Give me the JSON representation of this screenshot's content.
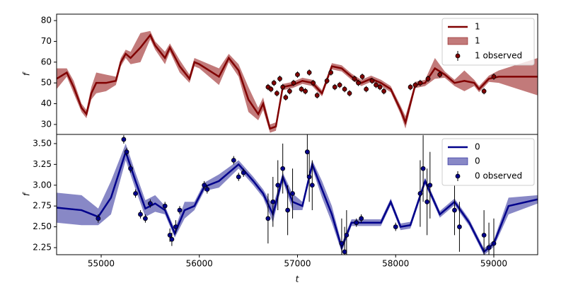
{
  "chart_data": [
    {
      "type": "line",
      "ylabel": "f",
      "legend": "upper right",
      "xlim": [
        54546,
        59447
      ],
      "ylim": [
        25.2,
        83.1
      ],
      "yticks": [
        30,
        40,
        50,
        60,
        70,
        80
      ],
      "line": {
        "name": "1",
        "color": "#800000",
        "x": [
          54546,
          54650,
          54720,
          54800,
          54850,
          54900,
          54950,
          55050,
          55150,
          55200,
          55250,
          55300,
          55400,
          55500,
          55550,
          55650,
          55700,
          55800,
          55900,
          55950,
          56000,
          56100,
          56200,
          56300,
          56400,
          56500,
          56600,
          56650,
          56720,
          56780,
          56850,
          56950,
          57050,
          57150,
          57250,
          57350,
          57450,
          57550,
          57650,
          57750,
          57850,
          57950,
          58050,
          58100,
          58200,
          58300,
          58400,
          58500,
          58600,
          58700,
          58800,
          58850,
          58950,
          59050,
          59447
        ],
        "values": [
          52,
          55,
          48,
          38,
          35,
          45,
          50,
          50,
          51,
          60,
          64,
          62,
          67,
          73,
          68,
          62,
          67,
          58,
          52,
          60,
          59,
          56,
          53,
          62,
          56,
          42,
          35,
          40,
          28,
          29,
          48,
          49,
          51,
          50,
          45,
          58,
          57,
          53,
          50,
          52,
          50,
          47,
          37,
          31,
          49,
          50,
          57,
          54,
          50,
          51,
          50,
          47,
          52,
          53,
          53
        ]
      },
      "band": {
        "name": "1",
        "color": "#b35959",
        "lower": [
          47,
          53,
          45,
          36,
          33,
          42,
          45,
          46,
          49,
          58,
          62,
          59,
          60,
          71,
          66,
          59,
          65,
          55,
          50,
          58,
          57,
          53,
          49,
          60,
          53,
          36,
          32,
          37,
          26,
          27,
          46.5,
          47.5,
          49.5,
          48.5,
          43.5,
          56.5,
          55.5,
          51.5,
          48.5,
          50.5,
          48.5,
          45.5,
          35,
          28,
          47.5,
          48.5,
          52,
          52.5,
          48.5,
          46,
          48.5,
          45.5,
          50.5,
          50,
          44
        ],
        "upper": [
          57,
          57,
          51,
          40,
          37,
          48,
          55,
          54,
          53,
          62,
          66,
          65,
          74,
          75,
          70,
          65,
          69,
          61,
          54,
          62,
          61,
          59,
          57,
          64,
          59,
          48,
          38,
          43,
          30,
          31,
          49.5,
          50.5,
          52.5,
          51.5,
          46.5,
          59.5,
          58.5,
          54.5,
          51.5,
          53.5,
          51.5,
          48.5,
          39,
          34,
          50.5,
          51.5,
          62,
          55.5,
          51.5,
          56,
          51.5,
          48.5,
          53.5,
          56,
          62
        ]
      },
      "observed": {
        "name": "1 observed",
        "color": "#800000",
        "x": [
          56700,
          56730,
          56760,
          56790,
          56820,
          56850,
          56880,
          56920,
          56960,
          57000,
          57040,
          57080,
          57120,
          57160,
          57200,
          57300,
          57340,
          57380,
          57430,
          57480,
          57530,
          57580,
          57620,
          57660,
          57700,
          57760,
          57800,
          57840,
          57880,
          58150,
          58200,
          58250,
          58330,
          58450,
          58900,
          59000
        ],
        "values": [
          48,
          47,
          50,
          45,
          52,
          48,
          43,
          46,
          50,
          54,
          47,
          46,
          55,
          50,
          44,
          51,
          55,
          48,
          49,
          47,
          45,
          52,
          50,
          53,
          47,
          51,
          49,
          48,
          46,
          48,
          49,
          50,
          52,
          54,
          46,
          53
        ],
        "errors": [
          1.5,
          1.5,
          1.5,
          1.5,
          1.5,
          1.5,
          1.5,
          1.5,
          1.5,
          1.5,
          1.5,
          1.5,
          1.5,
          1.5,
          1.5,
          1.5,
          1.5,
          1.5,
          1.5,
          1.5,
          1.5,
          1.5,
          1.5,
          1.5,
          1.5,
          1.5,
          1.5,
          1.5,
          1.5,
          1.5,
          1.5,
          1.5,
          1.5,
          1.5,
          1.5,
          1.5
        ]
      }
    },
    {
      "type": "line",
      "ylabel": "f",
      "xlabel": "t",
      "legend": "upper right",
      "xlim": [
        54546,
        59447
      ],
      "ylim": [
        2.165,
        3.61
      ],
      "xticks": [
        55000,
        56000,
        57000,
        58000,
        59000
      ],
      "yticks": [
        {
          "value": 2.25,
          "label": "2.25"
        },
        {
          "value": 2.5,
          "label": "2.50"
        },
        {
          "value": 2.75,
          "label": "2.75"
        },
        {
          "value": 3.0,
          "label": "3.00"
        },
        {
          "value": 3.25,
          "label": "3.25"
        },
        {
          "value": 3.5,
          "label": "3.50"
        }
      ],
      "line": {
        "name": "0",
        "color": "#00008b",
        "x": [
          54546,
          54800,
          54970,
          55100,
          55250,
          55350,
          55450,
          55550,
          55650,
          55750,
          55850,
          55950,
          56050,
          56200,
          56400,
          56550,
          56650,
          56750,
          56850,
          56950,
          57050,
          57150,
          57250,
          57350,
          57450,
          57550,
          57700,
          57850,
          57950,
          58050,
          58150,
          58300,
          58450,
          58600,
          58750,
          58900,
          59000,
          59150,
          59447
        ],
        "values": [
          2.73,
          2.7,
          2.62,
          2.85,
          3.4,
          3.05,
          2.72,
          2.78,
          2.7,
          2.42,
          2.7,
          2.75,
          2.98,
          3.05,
          3.25,
          3.05,
          2.9,
          2.65,
          3.1,
          2.8,
          2.75,
          3.25,
          2.95,
          2.65,
          2.25,
          2.55,
          2.55,
          2.55,
          2.8,
          2.5,
          2.52,
          3.05,
          2.65,
          2.8,
          2.55,
          2.2,
          2.3,
          2.75,
          2.83
        ]
      },
      "band": {
        "name": "0",
        "color": "#6a6ab8",
        "lower": [
          2.55,
          2.52,
          2.52,
          2.65,
          3.3,
          2.95,
          2.62,
          2.68,
          2.65,
          2.37,
          2.6,
          2.7,
          2.93,
          2.97,
          3.2,
          3.0,
          2.85,
          2.55,
          3.05,
          2.7,
          2.7,
          3.2,
          2.85,
          2.55,
          2.2,
          2.51,
          2.51,
          2.51,
          2.76,
          2.46,
          2.48,
          3.01,
          2.61,
          2.76,
          2.51,
          2.16,
          2.26,
          2.65,
          2.78
        ],
        "upper": [
          2.91,
          2.88,
          2.72,
          3.05,
          3.5,
          3.15,
          2.82,
          2.88,
          2.75,
          2.47,
          2.8,
          2.8,
          3.03,
          3.13,
          3.3,
          3.1,
          2.95,
          2.75,
          3.15,
          2.9,
          2.8,
          3.3,
          3.05,
          2.75,
          2.3,
          2.59,
          2.59,
          2.59,
          2.84,
          2.54,
          2.56,
          3.09,
          2.69,
          2.84,
          2.59,
          2.24,
          2.34,
          2.85,
          2.88
        ]
      },
      "observed": {
        "name": "0 observed",
        "color": "#00008b",
        "x": [
          54970,
          55230,
          55260,
          55300,
          55350,
          55400,
          55450,
          55500,
          55650,
          55700,
          55720,
          55760,
          55800,
          56050,
          56080,
          56350,
          56400,
          56450,
          56700,
          56750,
          56800,
          56850,
          56900,
          56950,
          57100,
          57120,
          57150,
          57450,
          57480,
          57500,
          57600,
          57650,
          58000,
          58250,
          58280,
          58320,
          58350,
          58600,
          58650,
          58900,
          58950,
          59000
        ],
        "values": [
          2.6,
          3.55,
          3.4,
          3.2,
          2.9,
          2.65,
          2.6,
          2.78,
          2.75,
          2.4,
          2.35,
          2.5,
          2.7,
          3.0,
          2.95,
          3.3,
          3.1,
          3.15,
          2.6,
          2.8,
          3.0,
          3.2,
          2.7,
          2.9,
          3.4,
          3.1,
          3.0,
          2.3,
          2.2,
          2.4,
          2.55,
          2.6,
          2.5,
          2.9,
          3.2,
          2.8,
          3.0,
          2.7,
          2.5,
          2.4,
          2.25,
          2.3
        ],
        "errors": [
          0.05,
          0.05,
          0.05,
          0.05,
          0.05,
          0.05,
          0.05,
          0.05,
          0.05,
          0.08,
          0.08,
          0.08,
          0.05,
          0.05,
          0.05,
          0.05,
          0.05,
          0.05,
          0.3,
          0.3,
          0.3,
          0.3,
          0.3,
          0.3,
          0.3,
          0.3,
          0.3,
          0.3,
          0.3,
          0.3,
          0.05,
          0.05,
          0.05,
          0.4,
          0.4,
          0.4,
          0.4,
          0.3,
          0.3,
          0.3,
          0.3,
          0.3
        ]
      }
    }
  ]
}
